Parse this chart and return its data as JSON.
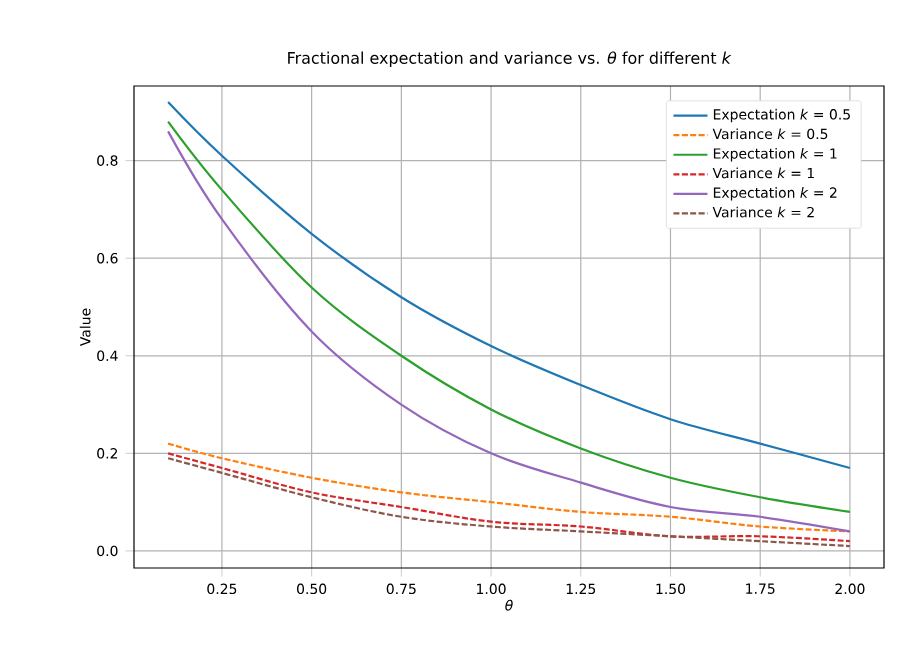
{
  "chart_data": {
    "type": "line",
    "title": "Fractional expectation and variance vs. *θ* for different *k*",
    "xlabel": "θ",
    "ylabel": "Value",
    "x": [
      0.1,
      0.25,
      0.5,
      0.75,
      1.0,
      1.25,
      1.5,
      1.75,
      2.0
    ],
    "series": [
      {
        "name": "Expectation *k* = 0.5",
        "color": "#1f77b4",
        "line_style": "solid",
        "values": [
          0.92,
          0.81,
          0.65,
          0.52,
          0.42,
          0.34,
          0.27,
          0.22,
          0.17
        ]
      },
      {
        "name": "Variance *k* = 0.5",
        "color": "#ff7f0e",
        "line_style": "dashed",
        "values": [
          0.22,
          0.19,
          0.15,
          0.12,
          0.1,
          0.08,
          0.07,
          0.05,
          0.04
        ]
      },
      {
        "name": "Expectation *k* = 1",
        "color": "#2ca02c",
        "line_style": "solid",
        "values": [
          0.88,
          0.74,
          0.54,
          0.4,
          0.29,
          0.21,
          0.15,
          0.11,
          0.08
        ]
      },
      {
        "name": "Variance *k* = 1",
        "color": "#d62728",
        "line_style": "dashed",
        "values": [
          0.2,
          0.17,
          0.12,
          0.09,
          0.06,
          0.05,
          0.03,
          0.03,
          0.02
        ]
      },
      {
        "name": "Expectation *k* = 2",
        "color": "#9467bd",
        "line_style": "solid",
        "values": [
          0.86,
          0.68,
          0.45,
          0.3,
          0.2,
          0.14,
          0.09,
          0.07,
          0.04
        ]
      },
      {
        "name": "Variance *k* = 2",
        "color": "#8c564b",
        "line_style": "dashed",
        "values": [
          0.19,
          0.16,
          0.11,
          0.07,
          0.05,
          0.04,
          0.03,
          0.02,
          0.01
        ]
      }
    ],
    "xlim": [
      0.005,
      2.095
    ],
    "ylim": [
      -0.035,
      0.953
    ],
    "xticks": [
      0.25,
      {
        "value": 0.5,
        "label": "0.50"
      },
      0.75,
      {
        "value": 1.0,
        "label": "1.00"
      },
      1.25,
      {
        "value": 1.5,
        "label": "1.50"
      },
      1.75,
      {
        "value": 2.0,
        "label": "2.00"
      }
    ],
    "yticks": [
      {
        "value": 0.0,
        "label": "0.0"
      },
      0.2,
      0.4,
      0.6,
      0.8
    ],
    "grid": true,
    "legend": "top right",
    "marker": "none"
  }
}
